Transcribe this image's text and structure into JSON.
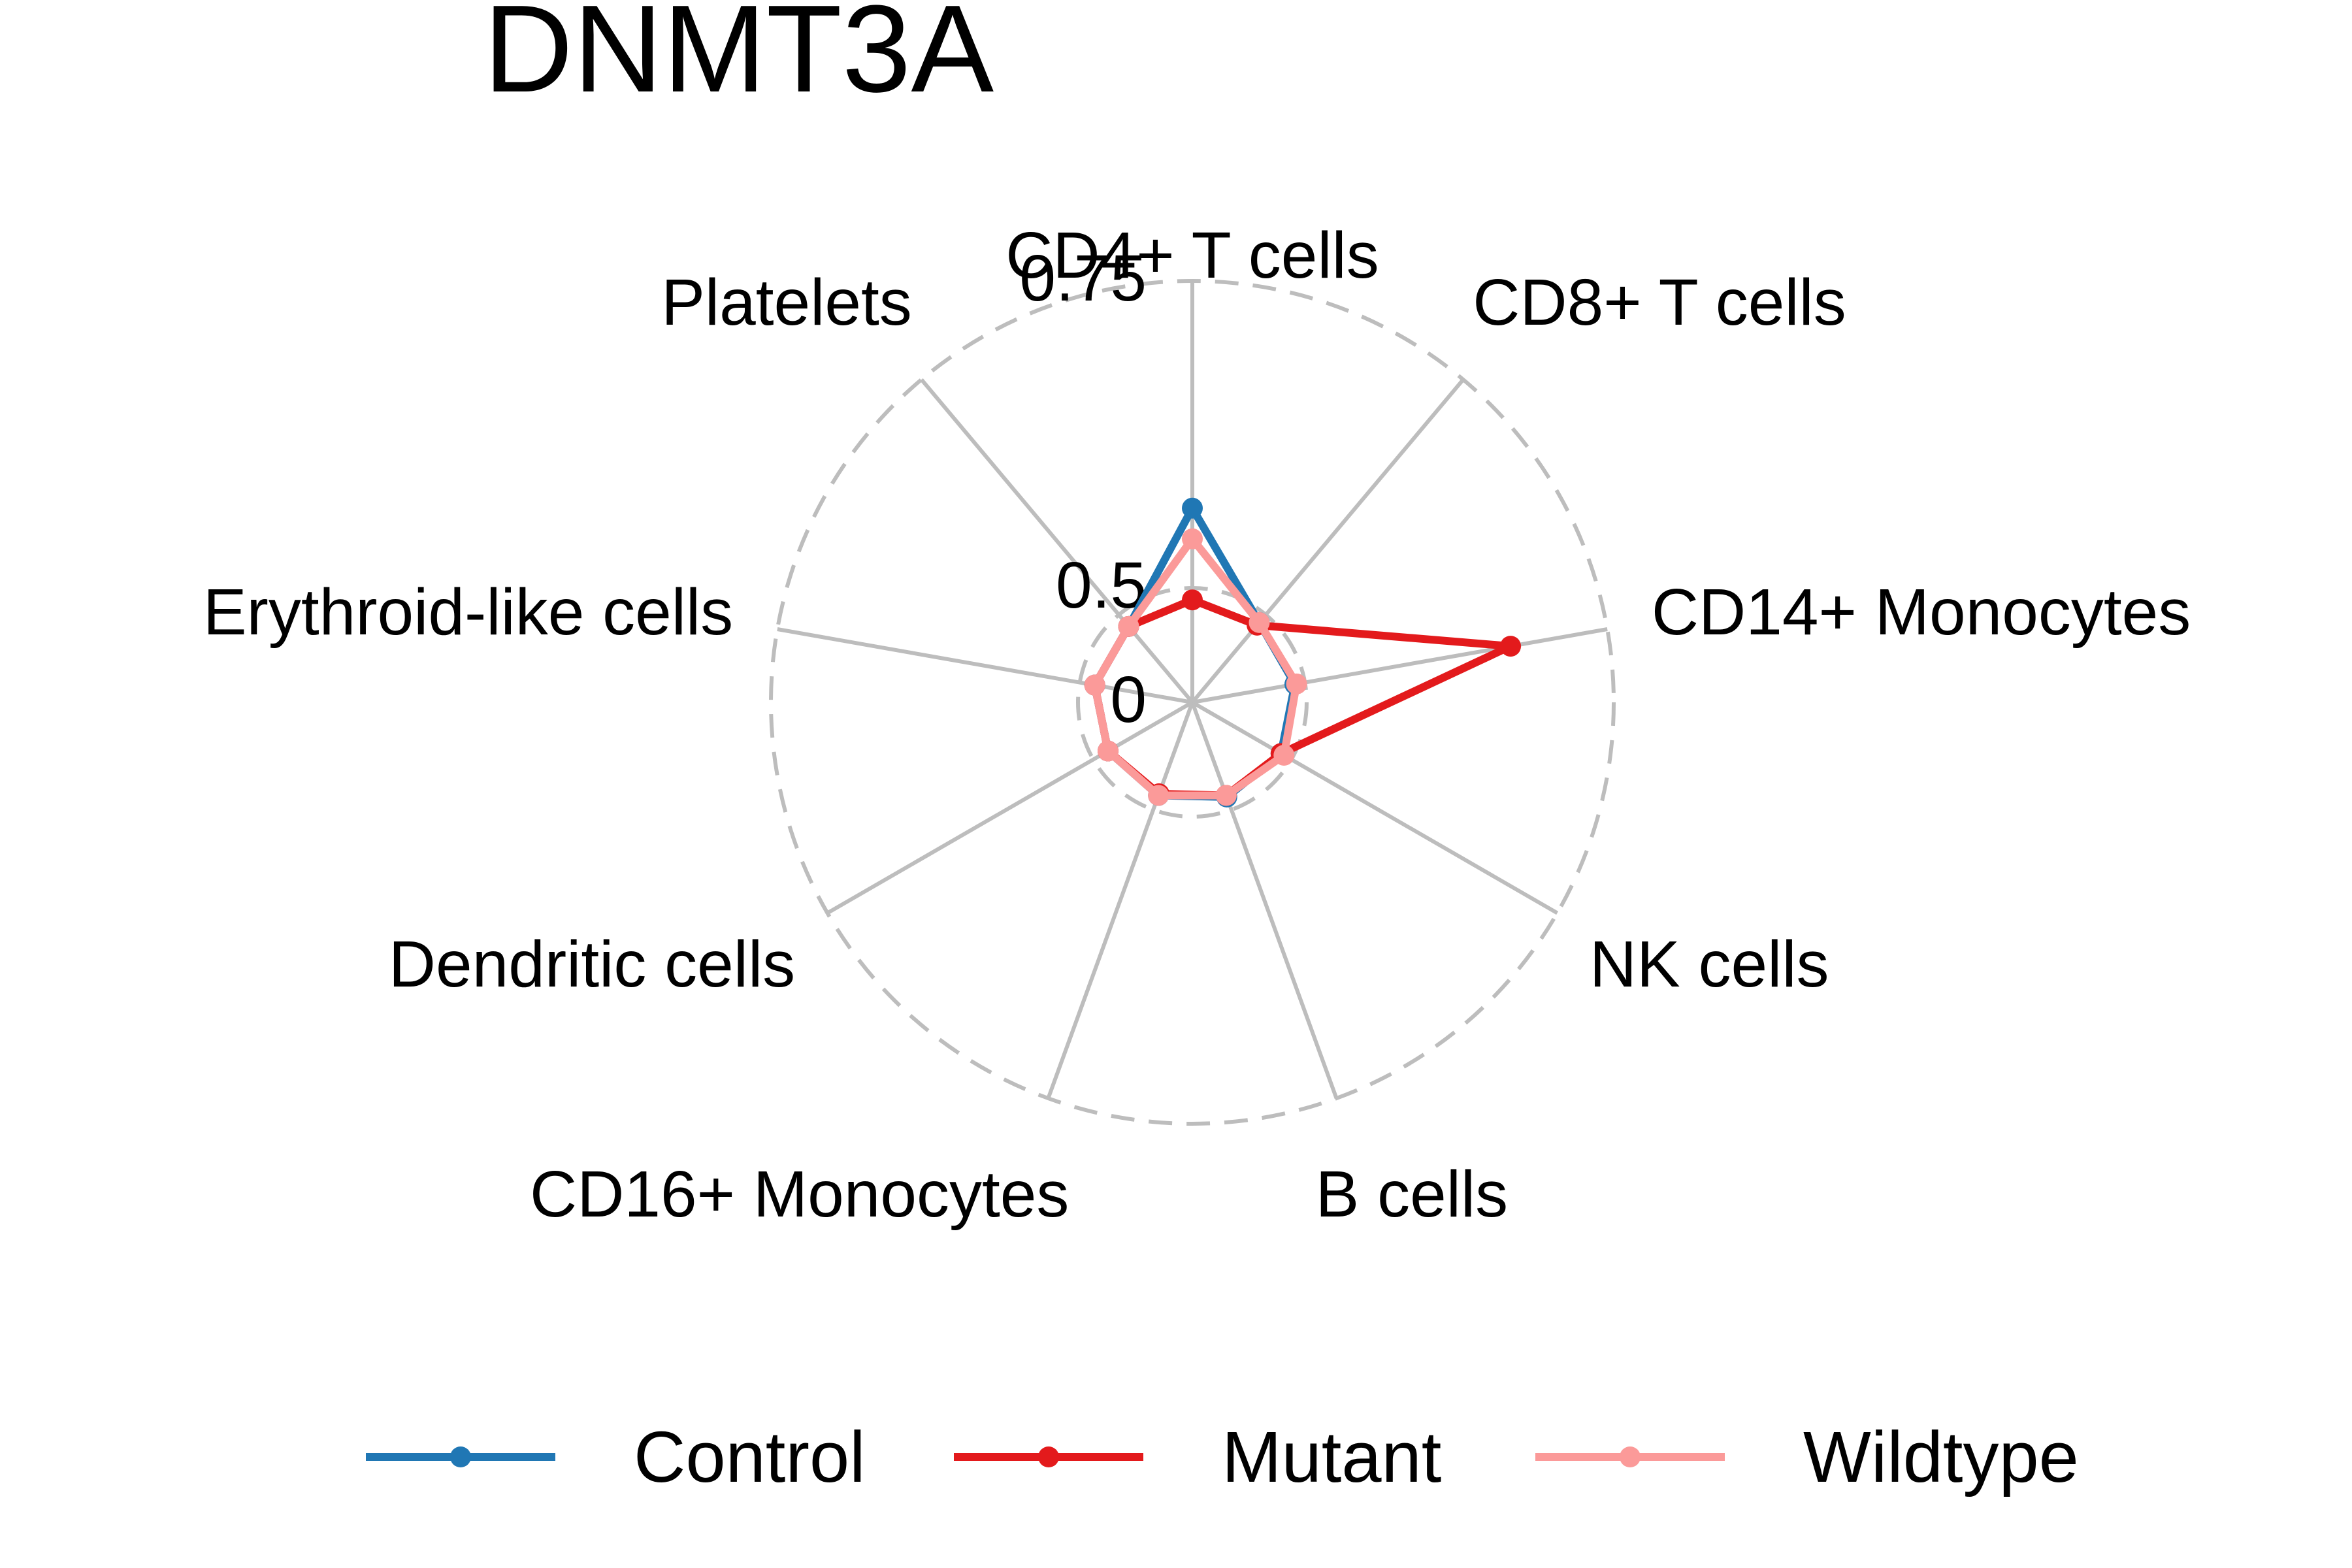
{
  "chart_data": {
    "type": "radar",
    "title": "DNMT3A",
    "categories": [
      "CD4+ T cells",
      "CD8+ T cells",
      "CD14+ Monocytes",
      "NK cells",
      "B cells",
      "CD16+ Monocytes",
      "Dendritic cells",
      "Erythroid-like cells",
      "Platelets"
    ],
    "radial_ticks": [
      {
        "value": 0,
        "label": "0"
      },
      {
        "value": 0.5,
        "label": "0.5"
      },
      {
        "value": 0.75,
        "label": "0.75"
      }
    ],
    "rlim": [
      0,
      0.75
    ],
    "series": [
      {
        "name": "Control",
        "color": "#2077b4",
        "values": [
          0.565,
          0.44,
          0.44,
          0.43,
          0.42,
          0.41,
          0.4,
          0.41,
          0.41
        ]
      },
      {
        "name": "Mutant",
        "color": "#e31a1c",
        "values": [
          0.43,
          0.42,
          0.67,
          0.43,
          0.41,
          0.4,
          0.4,
          0.41,
          0.41
        ]
      },
      {
        "name": "Wildtype",
        "color": "#fb9a99",
        "values": [
          0.54,
          0.44,
          0.45,
          0.45,
          0.41,
          0.41,
          0.4,
          0.41,
          0.41
        ]
      }
    ],
    "legend": {
      "position": "bottom"
    },
    "grid": true
  }
}
